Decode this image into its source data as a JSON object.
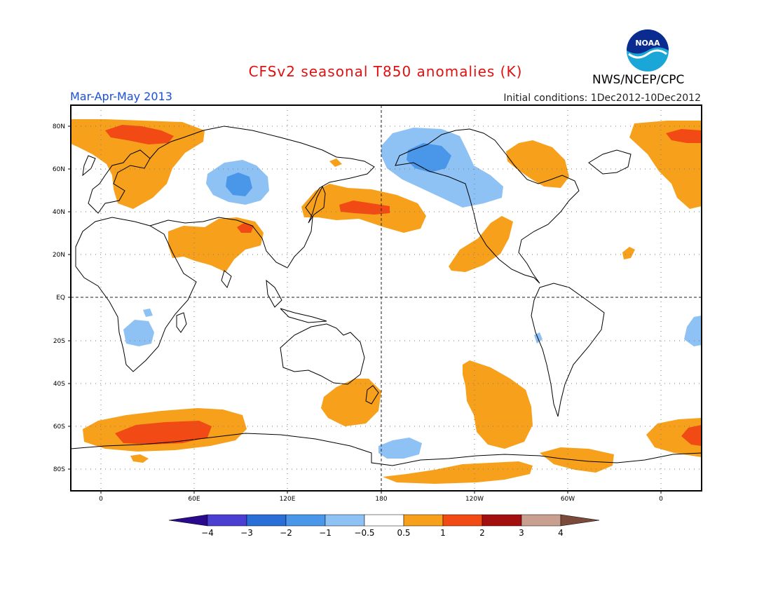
{
  "header": {
    "title": "CFSv2 seasonal T850 anomalies (K)",
    "title_color": "#dd1111",
    "period": "Mar-Apr-May 2013",
    "period_color": "#1a4fd6",
    "initial_conditions": "Initial conditions: 1Dec2012-10Dec2012",
    "agency": "NWS/NCEP/CPC",
    "logo_text": "NOAA",
    "logo_icon": "noaa-logo"
  },
  "map": {
    "lat_labels": [
      "80N",
      "60N",
      "40N",
      "20N",
      "EQ",
      "20S",
      "40S",
      "60S",
      "80S"
    ],
    "lon_labels": [
      "0",
      "60E",
      "120E",
      "180",
      "120W",
      "60W",
      "0"
    ]
  },
  "colorbar": {
    "labels": [
      "-4",
      "-3",
      "-2",
      "-1",
      "-0.5",
      "0.5",
      "1",
      "2",
      "3",
      "4"
    ],
    "colors": [
      "#2a0a8c",
      "#4a3fd0",
      "#2a6ed8",
      "#4a97ea",
      "#8fc2f4",
      "#ffffff",
      "#f7a01c",
      "#f24a14",
      "#a30f0f",
      "#c9a08f",
      "#7a4a3a"
    ]
  }
}
